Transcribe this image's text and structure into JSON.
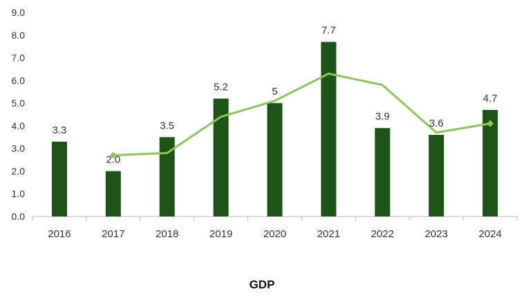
{
  "chart_data": {
    "type": "bar",
    "categories": [
      "2016",
      "2017",
      "2018",
      "2019",
      "2020",
      "2021",
      "2022",
      "2023",
      "2024"
    ],
    "series": [
      {
        "name": "GDP",
        "type": "bar",
        "color": "#1e5418",
        "values": [
          3.3,
          2.0,
          3.5,
          5.2,
          5.0,
          7.7,
          3.9,
          3.6,
          4.7
        ],
        "data_labels": [
          "3.3",
          "2.0",
          "3.5",
          "5.2",
          "5",
          "7.7",
          "3.9",
          "3.6",
          "4.7"
        ]
      },
      {
        "type": "line",
        "color": "#8cc657",
        "values": [
          null,
          2.7,
          2.8,
          4.4,
          5.1,
          6.3,
          5.8,
          3.7,
          4.1
        ]
      }
    ],
    "y_ticks": [
      "0.0",
      "1.0",
      "2.0",
      "3.0",
      "4.0",
      "5.0",
      "6.0",
      "7.0",
      "8.0",
      "9.0"
    ],
    "ylim": [
      0,
      9
    ],
    "grid": false,
    "legend": [
      "GDP"
    ],
    "legend_position": "bottom"
  }
}
